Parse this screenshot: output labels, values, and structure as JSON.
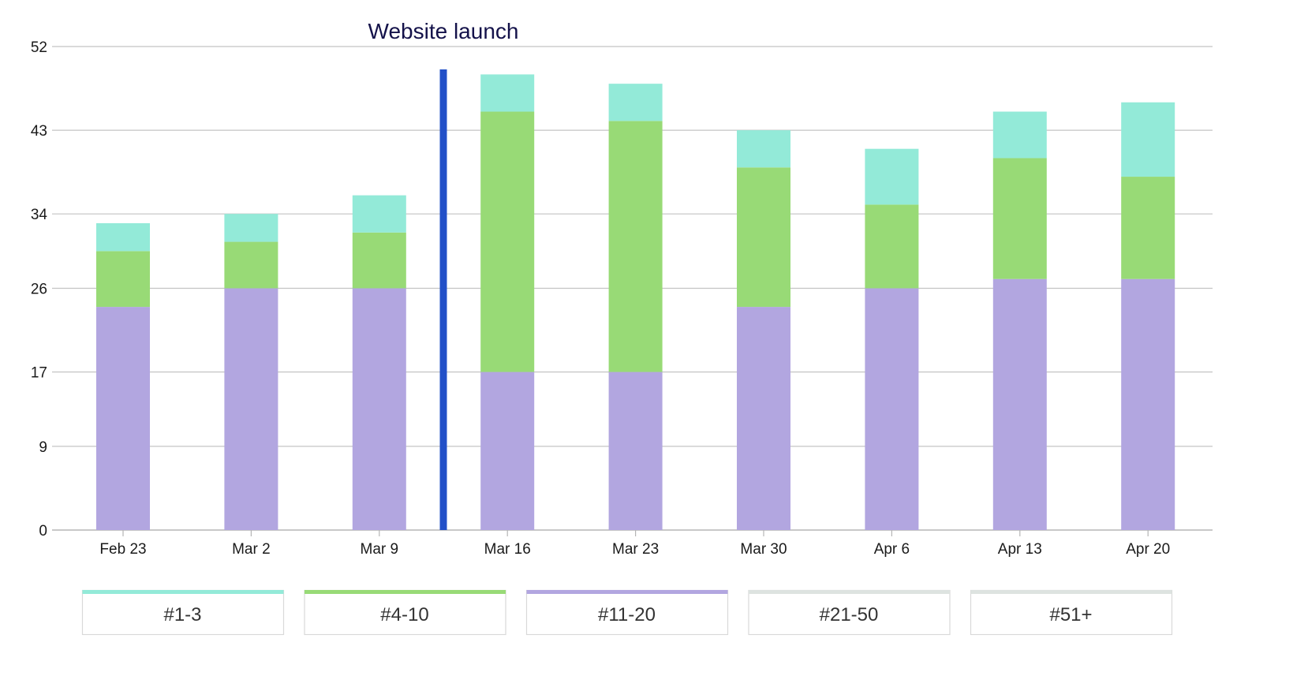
{
  "chart_data": {
    "type": "bar",
    "stacked": true,
    "title": "",
    "xlabel": "",
    "ylabel": "",
    "categories": [
      "Feb 23",
      "Mar 2",
      "Mar 9",
      "Mar 16",
      "Mar 23",
      "Mar 30",
      "Apr 6",
      "Apr 13",
      "Apr 20"
    ],
    "y_ticks": [
      "0",
      "9",
      "17",
      "26",
      "34",
      "43",
      "52"
    ],
    "ylim": [
      0,
      52
    ],
    "grid": true,
    "series": [
      {
        "name": "#11-20",
        "color": "#b2a6e0",
        "values": [
          24,
          26,
          26,
          17,
          17,
          24,
          26,
          27,
          27
        ]
      },
      {
        "name": "#4-10",
        "color": "#98da76",
        "values": [
          6,
          5,
          6,
          28,
          27,
          15,
          9,
          13,
          11
        ]
      },
      {
        "name": "#1-3",
        "color": "#93ead8",
        "values": [
          3,
          3,
          4,
          4,
          4,
          4,
          6,
          5,
          8
        ]
      }
    ],
    "annotation": {
      "label": "Website launch",
      "position_between": [
        "Mar 9",
        "Mar 16"
      ],
      "color": "#2250c8"
    },
    "legend": {
      "placement": "bottom",
      "items": [
        {
          "label": "#1-3",
          "color": "#93ead8",
          "active": true
        },
        {
          "label": "#4-10",
          "color": "#98da76",
          "active": true
        },
        {
          "label": "#11-20",
          "color": "#b2a6e0",
          "active": true
        },
        {
          "label": "#21-50",
          "color": "#dde3e0",
          "active": false
        },
        {
          "label": "#51+",
          "color": "#dde3e0",
          "active": false
        }
      ]
    }
  }
}
